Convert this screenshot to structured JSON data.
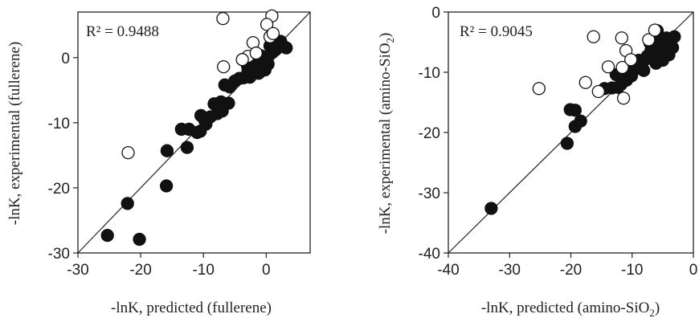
{
  "chart_data": [
    {
      "type": "scatter",
      "xlabel": "-lnK, predicted (fullerene)",
      "ylabel": "-lnK, experimental (fullerene)",
      "annotation": "R² = 0.9488",
      "xlim": [
        -30,
        7
      ],
      "ylim": [
        -30,
        7
      ],
      "xticks": [
        -30,
        -20,
        -10,
        0
      ],
      "yticks": [
        -30,
        -20,
        -10,
        0
      ],
      "diagonal": "y = x",
      "grid": false,
      "series": [
        {
          "marker": "filled-circle",
          "color": "#111111",
          "points": [
            [
              -25.3,
              -27.3
            ],
            [
              -20.2,
              -27.9
            ],
            [
              -22.1,
              -22.4
            ],
            [
              -15.9,
              -19.7
            ],
            [
              -15.8,
              -14.3
            ],
            [
              -12.6,
              -13.8
            ],
            [
              -13.5,
              -11.0
            ],
            [
              -12.3,
              -11.0
            ],
            [
              -10.5,
              -11.3
            ],
            [
              -10.4,
              -8.9
            ],
            [
              -9.6,
              -10.2
            ],
            [
              -8.9,
              -9.1
            ],
            [
              -7.8,
              -8.6
            ],
            [
              -7.0,
              -8.2
            ],
            [
              -7.2,
              -6.8
            ],
            [
              -6.0,
              -7.0
            ],
            [
              -6.6,
              -4.2
            ],
            [
              -5.8,
              -4.5
            ],
            [
              -5.0,
              -3.6
            ],
            [
              -3.6,
              -3.1
            ],
            [
              -2.6,
              -3.0
            ],
            [
              -2.2,
              -2.4
            ],
            [
              -1.9,
              -1.8
            ],
            [
              -1.2,
              -2.4
            ],
            [
              -0.7,
              -1.4
            ],
            [
              -0.3,
              -0.7
            ],
            [
              0.0,
              -0.2
            ],
            [
              0.5,
              0.4
            ],
            [
              1.0,
              0.8
            ],
            [
              1.5,
              1.2
            ],
            [
              2.0,
              1.6
            ],
            [
              2.6,
              1.9
            ],
            [
              3.2,
              1.5
            ],
            [
              0.3,
              -1.0
            ],
            [
              -1.4,
              -0.6
            ],
            [
              -2.9,
              -1.9
            ],
            [
              -0.9,
              0.3
            ],
            [
              1.1,
              2.2
            ],
            [
              0.6,
              1.8
            ],
            [
              2.3,
              2.5
            ],
            [
              -4.3,
              -3.2
            ],
            [
              -3.0,
              -1.2
            ],
            [
              -8.3,
              -7.1
            ],
            [
              -11.0,
              -11.5
            ],
            [
              -9.8,
              -9.6
            ],
            [
              -0.2,
              -1.9
            ]
          ]
        },
        {
          "marker": "open-circle",
          "color": "#111111",
          "points": [
            [
              -22.0,
              -14.6
            ],
            [
              -6.8,
              -1.4
            ],
            [
              -6.9,
              6.0
            ],
            [
              -2.1,
              2.3
            ],
            [
              0.9,
              6.4
            ],
            [
              0.1,
              5.1
            ],
            [
              0.6,
              3.2
            ],
            [
              1.1,
              3.7
            ],
            [
              -2.9,
              0.2
            ],
            [
              -3.8,
              -0.3
            ],
            [
              -1.6,
              0.7
            ]
          ]
        }
      ]
    },
    {
      "type": "scatter",
      "xlabel": "-lnK, predicted (amino-SiO",
      "xlabel_sub": "2",
      "xlabel_tail": ")",
      "ylabel": "-lnK, experimental (amino-SiO",
      "ylabel_sub": "2",
      "ylabel_tail": ")",
      "annotation": "R² = 0.9045",
      "xlim": [
        -40,
        0
      ],
      "ylim": [
        -40,
        0
      ],
      "xticks": [
        -40,
        -30,
        -20,
        -10,
        0
      ],
      "xtick_labels": [
        "-40",
        "-30",
        "-20",
        "-10",
        "0"
      ],
      "yticks": [
        -40,
        -30,
        -20,
        -10,
        0
      ],
      "diagonal": "y = x",
      "grid": false,
      "series": [
        {
          "marker": "filled-circle",
          "color": "#111111",
          "points": [
            [
              -33.0,
              -32.6
            ],
            [
              -20.6,
              -21.8
            ],
            [
              -20.1,
              -16.2
            ],
            [
              -19.3,
              -16.3
            ],
            [
              -19.3,
              -19.0
            ],
            [
              -18.4,
              -18.1
            ],
            [
              -14.5,
              -12.7
            ],
            [
              -13.3,
              -12.6
            ],
            [
              -12.3,
              -12.5
            ],
            [
              -11.6,
              -10.2
            ],
            [
              -10.9,
              -11.3
            ],
            [
              -12.6,
              -10.4
            ],
            [
              -9.7,
              -9.6
            ],
            [
              -8.5,
              -9.3
            ],
            [
              -8.9,
              -8.0
            ],
            [
              -7.5,
              -7.3
            ],
            [
              -6.5,
              -7.5
            ],
            [
              -5.4,
              -6.6
            ],
            [
              -4.6,
              -5.6
            ],
            [
              -3.4,
              -5.9
            ],
            [
              -3.1,
              -4.1
            ],
            [
              -5.9,
              -3.1
            ],
            [
              -7.1,
              -5.1
            ],
            [
              -6.1,
              -8.5
            ],
            [
              -5.0,
              -8.0
            ],
            [
              -7.9,
              -7.9
            ],
            [
              -6.9,
              -6.3
            ],
            [
              -4.4,
              -4.3
            ],
            [
              -5.6,
              -5.1
            ],
            [
              -10.1,
              -10.6
            ],
            [
              -11.8,
              -12.0
            ],
            [
              -8.1,
              -9.7
            ],
            [
              -6.3,
              -4.6
            ],
            [
              -4.0,
              -7.1
            ]
          ]
        },
        {
          "marker": "open-circle",
          "color": "#111111",
          "points": [
            [
              -25.2,
              -12.7
            ],
            [
              -16.3,
              -4.1
            ],
            [
              -17.6,
              -11.7
            ],
            [
              -15.5,
              -13.2
            ],
            [
              -11.7,
              -4.3
            ],
            [
              -11.4,
              -14.3
            ],
            [
              -11.6,
              -9.2
            ],
            [
              -13.9,
              -9.1
            ],
            [
              -7.3,
              -4.6
            ],
            [
              -6.3,
              -3.0
            ],
            [
              -11.0,
              -6.4
            ],
            [
              -10.2,
              -7.9
            ]
          ]
        }
      ]
    }
  ]
}
